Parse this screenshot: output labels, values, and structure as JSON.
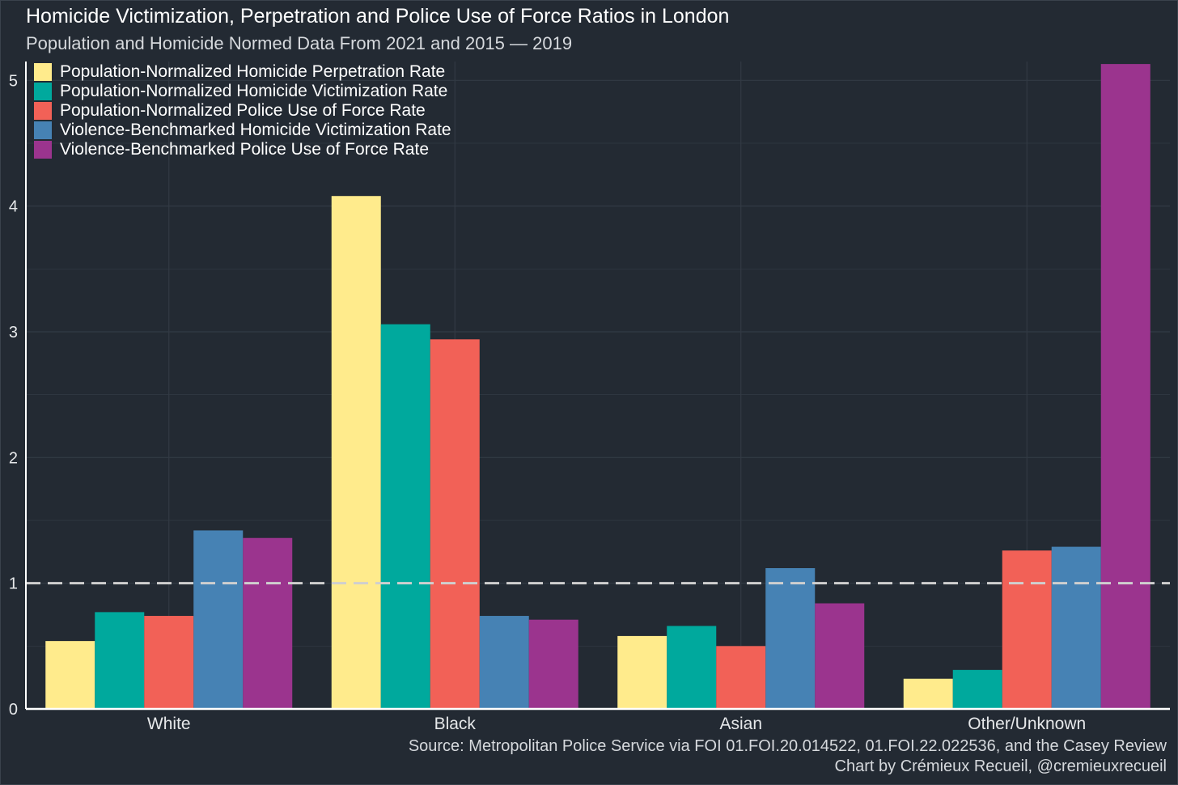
{
  "chart_data": {
    "type": "bar",
    "title": "Homicide Victimization, Perpetration and Police Use of Force Ratios in London",
    "subtitle": "Population and Homicide Normed Data From 2021 and 2015 — 2019",
    "xlabel": "",
    "ylabel": "",
    "categories": [
      "White",
      "Black",
      "Asian",
      "Other/Unknown"
    ],
    "yticks": [
      "0",
      "1",
      "2",
      "3",
      "4",
      "5"
    ],
    "ylim": [
      0,
      5.15
    ],
    "reference_line": 1,
    "grid": true,
    "legend_position": "top-left",
    "series": [
      {
        "name": "Population-Normalized Homicide Perpetration Rate",
        "color": "#ffeb8c",
        "values": [
          0.54,
          4.08,
          0.58,
          0.24
        ]
      },
      {
        "name": "Population-Normalized Homicide Victimization Rate",
        "color": "#00a99d",
        "values": [
          0.77,
          3.06,
          0.66,
          0.31
        ]
      },
      {
        "name": "Population-Normalized Police Use of Force Rate",
        "color": "#f26157",
        "values": [
          0.74,
          2.94,
          0.5,
          1.26
        ]
      },
      {
        "name": "Violence-Benchmarked Homicide Victimization Rate",
        "color": "#4682b4",
        "values": [
          1.42,
          0.74,
          1.12,
          1.29
        ]
      },
      {
        "name": "Violence-Benchmarked Police Use of Force Rate",
        "color": "#9b348e",
        "values": [
          1.36,
          0.71,
          0.84,
          5.13
        ]
      }
    ],
    "source": "Source: Metropolitan Police Service via FOI 01.FOI.20.014522, 01.FOI.22.022536, and the Casey Review",
    "credit": "Chart by Crémieux Recueil, @cremieuxrecueil"
  },
  "colors": {
    "background": "#232a33",
    "grid": "#323a44",
    "axis": "#ffffff",
    "reference_line": "#cfcfcf"
  }
}
